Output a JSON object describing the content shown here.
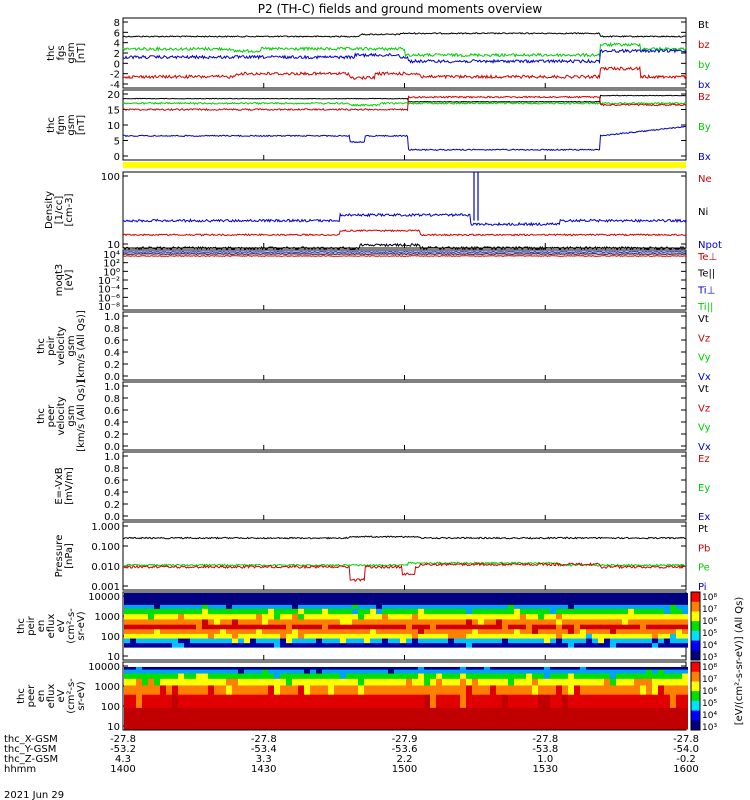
{
  "title": "P2 (TH-C) fields and ground moments overview",
  "date_label": "2021 Jun 29",
  "colors": {
    "black": "#000000",
    "red": "#d40000",
    "green": "#00d000",
    "blue": "#0000cc",
    "yellow": "#ffff00"
  },
  "chart_data": {
    "type": "line",
    "x_tick_labels": [
      "1400",
      "1430",
      "1500",
      "1530",
      "1600"
    ],
    "ephemeris": [
      {
        "label": "thc_X-GSM",
        "values": [
          "-27.8",
          "-27.8",
          "-27.9",
          "-27.8",
          "-27.8"
        ]
      },
      {
        "label": "thc_Y-GSM",
        "values": [
          "-53.2",
          "-53.4",
          "-53.6",
          "-53.8",
          "-54.0"
        ]
      },
      {
        "label": "thc_Z-GSM",
        "values": [
          "4.3",
          "3.3",
          "2.2",
          "1.0",
          "-0.2"
        ]
      },
      {
        "label": "hhmm",
        "values": [
          "",
          "",
          "",
          "",
          ""
        ]
      }
    ],
    "panels": [
      {
        "id": "fgs",
        "ylabel": [
          "thc",
          "fgs",
          "gsm",
          "[nT]"
        ],
        "scale": "linear",
        "ylim": [
          -4,
          8.5
        ],
        "yticks": [
          "8",
          "6",
          "4",
          "2",
          "0",
          "-2",
          "-4"
        ],
        "legend": [
          "Bt",
          "bz",
          "by",
          "bx"
        ],
        "legend_colors": [
          "black",
          "red",
          "green",
          "blue"
        ]
      },
      {
        "id": "fgm",
        "ylabel": [
          "thc",
          "fgm",
          "gsm",
          "[nT]"
        ],
        "scale": "linear",
        "ylim": [
          -3,
          21
        ],
        "yticks": [
          "20",
          "15",
          "10",
          "5",
          "0"
        ],
        "legend": [
          "Bz",
          "By",
          "Bx"
        ],
        "legend_colors": [
          "red",
          "green",
          "blue"
        ]
      },
      {
        "id": "density",
        "ylabel": [
          "Density",
          "[1/cc]",
          "[cm-3]"
        ],
        "scale": "log",
        "ylim": [
          3,
          300
        ],
        "yticks": [
          "100",
          "10"
        ],
        "legend": [
          "Ne",
          "Ni",
          "Npot"
        ],
        "legend_colors": [
          "red",
          "black",
          "blue"
        ]
      },
      {
        "id": "temp",
        "ylabel": [
          "moqt3",
          "[eV]"
        ],
        "scale": "log",
        "yticks": [
          "10⁴",
          "10²",
          "10⁰",
          "10⁻²",
          "10⁻⁴",
          "10⁻⁶",
          "10⁻⁸"
        ],
        "legend": [
          "Te⊥",
          "Te||",
          "Ti⊥",
          "Ti||"
        ],
        "legend_colors": [
          "red",
          "black",
          "blue",
          "green"
        ]
      },
      {
        "id": "vi",
        "ylabel": [
          "thc",
          "peir",
          "velocity",
          "gsm",
          "[km/s (All Qs)]"
        ],
        "scale": "linear",
        "ylim": [
          0,
          1
        ],
        "yticks": [
          "1.0",
          "0.8",
          "0.6",
          "0.4",
          "0.2",
          "0.0"
        ],
        "legend": [
          "Vt",
          "Vz",
          "Vy",
          "Vx"
        ],
        "legend_colors": [
          "black",
          "red",
          "green",
          "blue"
        ]
      },
      {
        "id": "ve",
        "ylabel": [
          "thc",
          "peer",
          "velocity",
          "gsm",
          "[km/s (All Qs)]"
        ],
        "scale": "linear",
        "ylim": [
          0,
          1
        ],
        "yticks": [
          "1.0",
          "0.8",
          "0.6",
          "0.4",
          "0.2",
          "0.0"
        ],
        "legend": [
          "Vt",
          "Vz",
          "Vy",
          "Vx"
        ],
        "legend_colors": [
          "black",
          "red",
          "green",
          "blue"
        ]
      },
      {
        "id": "efield",
        "ylabel": [
          "E=-VxB",
          "[mV/m]"
        ],
        "scale": "linear",
        "ylim": [
          0,
          1
        ],
        "yticks": [
          "1.0",
          "0.8",
          "0.6",
          "0.4",
          "0.2",
          "0.0"
        ],
        "legend": [
          "Ez",
          "Ey",
          "Ex"
        ],
        "legend_colors": [
          "red",
          "green",
          "blue"
        ]
      },
      {
        "id": "pressure",
        "ylabel": [
          "Pressure",
          "[nPa]"
        ],
        "scale": "log",
        "ylim": [
          0.0006,
          1.3
        ],
        "yticks": [
          "1.000",
          "0.100",
          "0.010",
          "0.001"
        ],
        "legend": [
          "Pt",
          "Pb",
          "Pe",
          "Pi"
        ],
        "legend_colors": [
          "black",
          "red",
          "green",
          "blue"
        ]
      },
      {
        "id": "ion_spec",
        "ylabel": [
          "thc",
          "peir",
          "en",
          "eflux",
          "eV",
          "(cm²-s-",
          "sr-eV)"
        ],
        "scale": "log",
        "yticks": [
          "10000",
          "1000",
          "100",
          "10"
        ]
      },
      {
        "id": "elec_spec",
        "ylabel": [
          "thc",
          "peer",
          "en",
          "eflux",
          "eV",
          "(cm²-s-",
          "sr-eV)"
        ],
        "scale": "log",
        "yticks": [
          "10000",
          "1000",
          "100",
          "10"
        ]
      }
    ],
    "colorbar": {
      "ticks": [
        "10⁸",
        "10⁷",
        "10⁶",
        "10⁵",
        "10⁴",
        "10³"
      ],
      "ticks_lower": [
        "10⁸",
        "10⁷",
        "10⁶",
        "10⁵",
        "10⁴",
        "10³"
      ],
      "label": "[eV/(cm²-s-sr-eV)] (All Qs)"
    }
  }
}
